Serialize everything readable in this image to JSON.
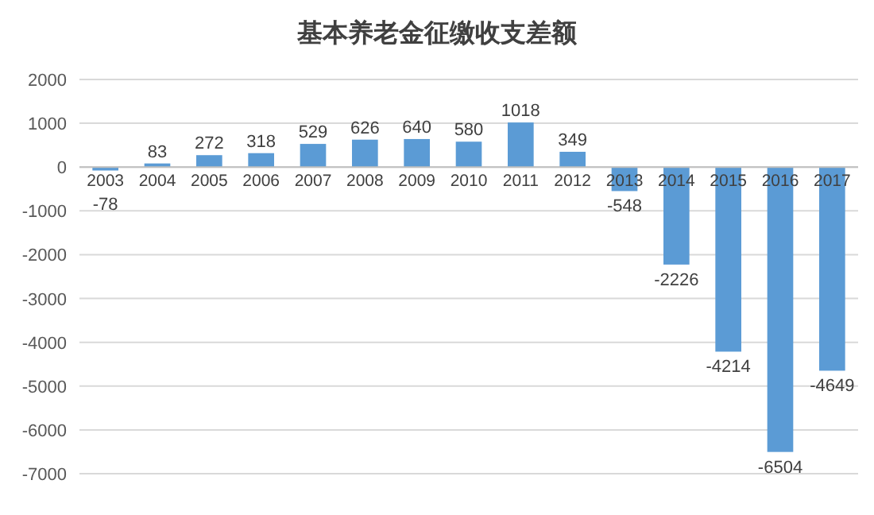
{
  "chart_data": {
    "type": "bar",
    "title": "基本养老金征缴收支差额",
    "categories": [
      "2003",
      "2004",
      "2005",
      "2006",
      "2007",
      "2008",
      "2009",
      "2010",
      "2011",
      "2012",
      "2013",
      "2014",
      "2015",
      "2016",
      "2017"
    ],
    "values": [
      -78,
      83,
      272,
      318,
      529,
      626,
      640,
      580,
      1018,
      349,
      -548,
      -2226,
      -4214,
      -6504,
      -4649
    ],
    "color": "#5b9bd5",
    "ylim": [
      -7000,
      2000
    ],
    "yticks": [
      -7000,
      -6000,
      -5000,
      -4000,
      -3000,
      -2000,
      -1000,
      0,
      1000,
      2000
    ],
    "grid": "y",
    "data_labels": true
  }
}
